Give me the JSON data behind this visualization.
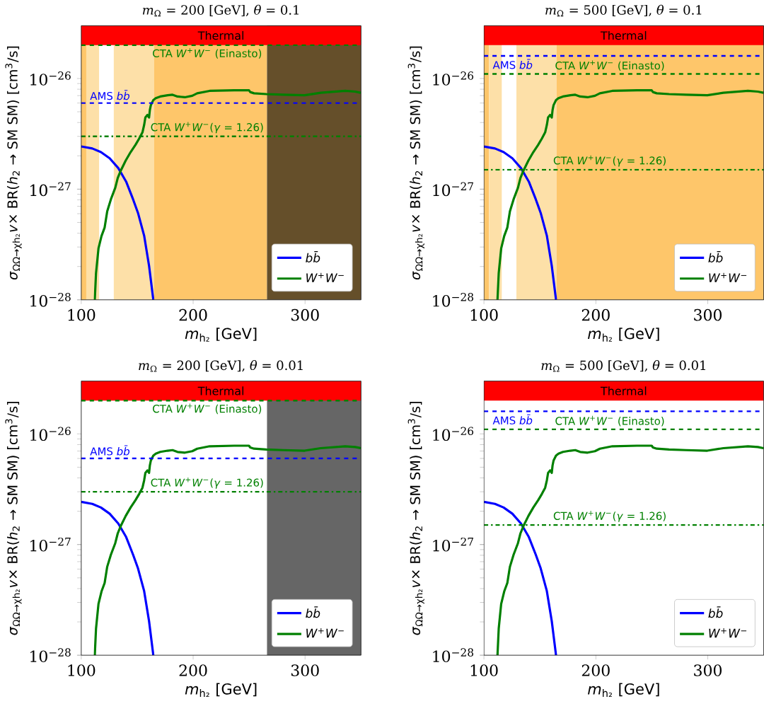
{
  "chart_data": [
    {
      "type": "line",
      "title": "*m*$_{Ω}$ = 200 [GeV], *θ* = 0.1",
      "xlabel": "*m*$_{h₂}$ [GeV]",
      "ylabel": "*σ*$_{ΩΩ→χh₂}$*v*× BR(*h*$_{2}$ → SM SM) [cm$^{3}$/s]",
      "series": [
        {
          "name": "*bb̄*",
          "color": "#0000ff",
          "x": [
            100,
            109.9,
            117.6,
            125.4,
            133.1,
            140.1,
            146.3,
            150.7,
            156.2,
            160.6,
            164.4
          ],
          "values": [
            2.43e-27,
            2.33e-27,
            2.16e-27,
            1.9e-27,
            1.55e-27,
            1.17e-27,
            8.1e-28,
            6.1e-28,
            3.8e-28,
            2.03e-28,
            1e-28
          ]
        },
        {
          "name": "*W*$^{+}$*W*$^{−}$",
          "color": "#008000",
          "x": [
            112.1,
            113.2,
            115.4,
            118.1,
            120.9,
            123.2,
            126.5,
            130.4,
            132.6,
            135.3,
            139.7,
            144.1,
            148.5,
            151.8,
            154.7,
            156.2,
            157.3,
            159.1,
            160.6,
            161.3,
            162.2,
            164.4,
            166.6,
            170.6,
            177.2,
            181.6,
            186.0,
            192.6,
            199.2,
            203.6,
            214.7,
            236.7,
            249.9,
            251.0,
            254.4,
            265.4,
            280.8,
            299.6,
            313.9,
            335.9,
            344.8,
            349.8
          ],
          "values": [
            1e-28,
            1.74e-28,
            2.91e-28,
            3.77e-28,
            4.5e-28,
            6.3e-28,
            8.1e-28,
            1.03e-27,
            1.26e-27,
            1.47e-27,
            1.81e-27,
            2.16e-27,
            2.52e-27,
            2.87e-27,
            3.26e-27,
            3.8e-27,
            4.44e-27,
            4.68e-27,
            4.44e-27,
            5.18e-27,
            5.74e-27,
            6.37e-27,
            6.63e-27,
            6.87e-27,
            7.05e-27,
            7.13e-27,
            6.87e-27,
            6.77e-27,
            6.98e-27,
            7.35e-27,
            7.73e-27,
            7.82e-27,
            7.82e-27,
            7.54e-27,
            7.35e-27,
            7.23e-27,
            7.13e-27,
            7.05e-27,
            7.43e-27,
            7.73e-27,
            7.61e-27,
            7.43e-27
          ]
        }
      ],
      "xlim": [
        100,
        350
      ],
      "ylim": [
        1e-28,
        3e-26
      ],
      "xticks": [
        100,
        200,
        300
      ],
      "yticks": [
        {
          "value": 1e-28,
          "label": "10$^{−28}$"
        },
        {
          "value": 1e-27,
          "label": "10$^{−27}$"
        },
        {
          "value": 1e-26,
          "label": "10$^{−26}$"
        }
      ],
      "log": "y",
      "legend": "bottom right",
      "bands": [
        {
          "axis": "x",
          "from": 100,
          "to": 104.5,
          "color": "#fec66a"
        },
        {
          "axis": "x",
          "from": 104.5,
          "to": 116,
          "color": "#fde0a8"
        },
        {
          "axis": "x",
          "from": 129,
          "to": 165,
          "color": "#fde0a8"
        },
        {
          "axis": "x",
          "from": 165,
          "to": 266,
          "color": "#fec66a"
        },
        {
          "axis": "x",
          "from": 266,
          "to": 350,
          "color": "#654f2a"
        },
        {
          "axis": "y",
          "from": 2e-26,
          "to": 3e-26,
          "label": "Thermal",
          "color": "#ff0000"
        }
      ],
      "ref_lines": [
        {
          "axis": "y",
          "value": 6e-27,
          "label": "AMS *bb̄*",
          "color": "#0000ff",
          "line_style": "dashed"
        },
        {
          "axis": "y",
          "value": 2e-26,
          "label": "CTA *W*$^{+}$*W*$^{−}$ (Einasto)",
          "color": "#008000",
          "line_style": "dashed"
        },
        {
          "axis": "y",
          "value": 3e-27,
          "color": "#008000",
          "line_style": "dashdot"
        }
      ],
      "annotations": [
        "CTA *W*$^{+}$*W*$^{−}$(*γ* = 1.26)"
      ]
    },
    {
      "type": "line",
      "title": "*m*$_{Ω}$ = 500 [GeV], *θ* = 0.1",
      "xlabel": "*m*$_{h₂}$ [GeV]",
      "ylabel": "*σ*$_{ΩΩ→χh₂}$*v*× BR(*h*$_{2}$ → SM SM) [cm$^{3}$/s]",
      "series": [
        {
          "name": "*bb̄*",
          "color": "#0000ff",
          "x": [
            100,
            109.9,
            117.6,
            125.4,
            133.1,
            140.1,
            146.3,
            150.7,
            156.2,
            160.6,
            164.4
          ],
          "values": [
            2.43e-27,
            2.33e-27,
            2.16e-27,
            1.9e-27,
            1.55e-27,
            1.17e-27,
            8.1e-28,
            6.1e-28,
            3.8e-28,
            2.03e-28,
            1e-28
          ]
        },
        {
          "name": "*W*$^{+}$*W*$^{−}$",
          "color": "#008000",
          "x": [
            112.1,
            113.2,
            115.4,
            118.1,
            120.9,
            123.2,
            126.5,
            130.4,
            132.6,
            135.3,
            139.7,
            144.1,
            148.5,
            151.8,
            154.7,
            156.2,
            157.3,
            159.1,
            160.6,
            161.3,
            162.2,
            164.4,
            166.6,
            170.6,
            177.2,
            181.6,
            186.0,
            192.6,
            199.2,
            203.6,
            214.7,
            236.7,
            249.9,
            251.0,
            254.4,
            265.4,
            280.8,
            299.6,
            313.9,
            335.9,
            344.8,
            349.8
          ],
          "values": [
            1e-28,
            1.74e-28,
            2.91e-28,
            3.77e-28,
            4.5e-28,
            6.3e-28,
            8.1e-28,
            1.03e-27,
            1.26e-27,
            1.47e-27,
            1.81e-27,
            2.16e-27,
            2.52e-27,
            2.87e-27,
            3.26e-27,
            3.8e-27,
            4.44e-27,
            4.68e-27,
            4.44e-27,
            5.18e-27,
            5.74e-27,
            6.37e-27,
            6.63e-27,
            6.87e-27,
            7.05e-27,
            7.13e-27,
            6.87e-27,
            6.77e-27,
            6.98e-27,
            7.35e-27,
            7.73e-27,
            7.82e-27,
            7.82e-27,
            7.54e-27,
            7.35e-27,
            7.23e-27,
            7.13e-27,
            7.05e-27,
            7.43e-27,
            7.73e-27,
            7.61e-27,
            7.43e-27
          ]
        }
      ],
      "xlim": [
        100,
        350
      ],
      "ylim": [
        1e-28,
        3e-26
      ],
      "xticks": [
        100,
        200,
        300
      ],
      "yticks": [
        {
          "value": 1e-28,
          "label": "10$^{−28}$"
        },
        {
          "value": 1e-27,
          "label": "10$^{−27}$"
        },
        {
          "value": 1e-26,
          "label": "10$^{−26}$"
        }
      ],
      "log": "y",
      "legend": "bottom right",
      "bands": [
        {
          "axis": "x",
          "from": 100,
          "to": 104.5,
          "color": "#fec66a"
        },
        {
          "axis": "x",
          "from": 104.5,
          "to": 116,
          "color": "#fde0a8"
        },
        {
          "axis": "x",
          "from": 129,
          "to": 165,
          "color": "#fde0a8"
        },
        {
          "axis": "x",
          "from": 165,
          "to": 350,
          "color": "#fec66a"
        },
        {
          "axis": "y",
          "from": 2e-26,
          "to": 3e-26,
          "label": "Thermal",
          "color": "#ff0000"
        }
      ],
      "ref_lines": [
        {
          "axis": "y",
          "value": 1.6e-26,
          "label": "AMS *bb̄*",
          "color": "#0000ff",
          "line_style": "dashed"
        },
        {
          "axis": "y",
          "value": 1.1e-26,
          "label": "CTA *W*$^{+}$*W*$^{−}$ (Einasto)",
          "color": "#008000",
          "line_style": "dashed"
        },
        {
          "axis": "y",
          "value": 1.5e-27,
          "color": "#008000",
          "line_style": "dashdot"
        }
      ],
      "annotations": [
        "CTA *W*$^{+}$*W*$^{−}$(*γ* = 1.26)"
      ]
    },
    {
      "type": "line",
      "title": "*m*$_{Ω}$ = 200 [GeV], *θ* = 0.01",
      "xlabel": "*m*$_{h₂}$ [GeV]",
      "ylabel": "*σ*$_{ΩΩ→χh₂}$*v*× BR(*h*$_{2}$ → SM SM) [cm$^{3}$/s]",
      "series": [
        {
          "name": "*bb̄*",
          "color": "#0000ff",
          "x": [
            100,
            109.9,
            117.6,
            125.4,
            133.1,
            140.1,
            146.3,
            150.7,
            156.2,
            160.6,
            164.4
          ],
          "values": [
            2.43e-27,
            2.33e-27,
            2.16e-27,
            1.9e-27,
            1.55e-27,
            1.17e-27,
            8.1e-28,
            6.1e-28,
            3.8e-28,
            2.03e-28,
            1e-28
          ]
        },
        {
          "name": "*W*$^{+}$*W*$^{−}$",
          "color": "#008000",
          "x": [
            112.1,
            113.2,
            115.4,
            118.1,
            120.9,
            123.2,
            126.5,
            130.4,
            132.6,
            135.3,
            139.7,
            144.1,
            148.5,
            151.8,
            154.7,
            156.2,
            157.3,
            159.1,
            160.6,
            161.3,
            162.2,
            164.4,
            166.6,
            170.6,
            177.2,
            181.6,
            186.0,
            192.6,
            199.2,
            203.6,
            214.7,
            236.7,
            249.9,
            251.0,
            254.4,
            265.4,
            280.8,
            299.6,
            313.9,
            335.9,
            344.8,
            349.8
          ],
          "values": [
            1e-28,
            1.74e-28,
            2.91e-28,
            3.77e-28,
            4.5e-28,
            6.3e-28,
            8.1e-28,
            1.03e-27,
            1.26e-27,
            1.47e-27,
            1.81e-27,
            2.16e-27,
            2.52e-27,
            2.87e-27,
            3.26e-27,
            3.8e-27,
            4.44e-27,
            4.68e-27,
            4.44e-27,
            5.18e-27,
            5.74e-27,
            6.37e-27,
            6.63e-27,
            6.87e-27,
            7.05e-27,
            7.13e-27,
            6.87e-27,
            6.77e-27,
            6.98e-27,
            7.35e-27,
            7.73e-27,
            7.82e-27,
            7.82e-27,
            7.54e-27,
            7.35e-27,
            7.23e-27,
            7.13e-27,
            7.05e-27,
            7.43e-27,
            7.73e-27,
            7.61e-27,
            7.43e-27
          ]
        }
      ],
      "xlim": [
        100,
        350
      ],
      "ylim": [
        1e-28,
        3e-26
      ],
      "xticks": [
        100,
        200,
        300
      ],
      "yticks": [
        {
          "value": 1e-28,
          "label": "10$^{−28}$"
        },
        {
          "value": 1e-27,
          "label": "10$^{−27}$"
        },
        {
          "value": 1e-26,
          "label": "10$^{−26}$"
        }
      ],
      "log": "y",
      "legend": "bottom right",
      "bands": [
        {
          "axis": "x",
          "from": 266,
          "to": 350,
          "color": "#666666"
        },
        {
          "axis": "y",
          "from": 2e-26,
          "to": 3e-26,
          "label": "Thermal",
          "color": "#ff0000"
        }
      ],
      "ref_lines": [
        {
          "axis": "y",
          "value": 6e-27,
          "label": "AMS *bb̄*",
          "color": "#0000ff",
          "line_style": "dashed"
        },
        {
          "axis": "y",
          "value": 2e-26,
          "label": "CTA *W*$^{+}$*W*$^{−}$ (Einasto)",
          "color": "#008000",
          "line_style": "dashed"
        },
        {
          "axis": "y",
          "value": 3e-27,
          "color": "#008000",
          "line_style": "dashdot"
        }
      ],
      "annotations": [
        "CTA *W*$^{+}$*W*$^{−}$(*γ* = 1.26)"
      ]
    },
    {
      "type": "line",
      "title": "*m*$_{Ω}$ = 500 [GeV], *θ* = 0.01",
      "xlabel": "*m*$_{h₂}$ [GeV]",
      "ylabel": "*σ*$_{ΩΩ→χh₂}$*v*× BR(*h*$_{2}$ → SM SM) [cm$^{3}$/s]",
      "series": [
        {
          "name": "*bb̄*",
          "color": "#0000ff",
          "x": [
            100,
            109.9,
            117.6,
            125.4,
            133.1,
            140.1,
            146.3,
            150.7,
            156.2,
            160.6,
            164.4
          ],
          "values": [
            2.43e-27,
            2.33e-27,
            2.16e-27,
            1.9e-27,
            1.55e-27,
            1.17e-27,
            8.1e-28,
            6.1e-28,
            3.8e-28,
            2.03e-28,
            1e-28
          ]
        },
        {
          "name": "*W*$^{+}$*W*$^{−}$",
          "color": "#008000",
          "x": [
            112.1,
            113.2,
            115.4,
            118.1,
            120.9,
            123.2,
            126.5,
            130.4,
            132.6,
            135.3,
            139.7,
            144.1,
            148.5,
            151.8,
            154.7,
            156.2,
            157.3,
            159.1,
            160.6,
            161.3,
            162.2,
            164.4,
            166.6,
            170.6,
            177.2,
            181.6,
            186.0,
            192.6,
            199.2,
            203.6,
            214.7,
            236.7,
            249.9,
            251.0,
            254.4,
            265.4,
            280.8,
            299.6,
            313.9,
            335.9,
            344.8,
            349.8
          ],
          "values": [
            1e-28,
            1.74e-28,
            2.91e-28,
            3.77e-28,
            4.5e-28,
            6.3e-28,
            8.1e-28,
            1.03e-27,
            1.26e-27,
            1.47e-27,
            1.81e-27,
            2.16e-27,
            2.52e-27,
            2.87e-27,
            3.26e-27,
            3.8e-27,
            4.44e-27,
            4.68e-27,
            4.44e-27,
            5.18e-27,
            5.74e-27,
            6.37e-27,
            6.63e-27,
            6.87e-27,
            7.05e-27,
            7.13e-27,
            6.87e-27,
            6.77e-27,
            6.98e-27,
            7.35e-27,
            7.73e-27,
            7.82e-27,
            7.82e-27,
            7.54e-27,
            7.35e-27,
            7.23e-27,
            7.13e-27,
            7.05e-27,
            7.43e-27,
            7.73e-27,
            7.61e-27,
            7.43e-27
          ]
        }
      ],
      "xlim": [
        100,
        350
      ],
      "ylim": [
        1e-28,
        3e-26
      ],
      "xticks": [
        100,
        200,
        300
      ],
      "yticks": [
        {
          "value": 1e-28,
          "label": "10$^{−28}$"
        },
        {
          "value": 1e-27,
          "label": "10$^{−27}$"
        },
        {
          "value": 1e-26,
          "label": "10$^{−26}$"
        }
      ],
      "log": "y",
      "legend": "bottom right",
      "bands": [
        {
          "axis": "y",
          "from": 2e-26,
          "to": 3e-26,
          "label": "Thermal",
          "color": "#ff0000"
        }
      ],
      "ref_lines": [
        {
          "axis": "y",
          "value": 1.6e-26,
          "label": "AMS *bb̄*",
          "color": "#0000ff",
          "line_style": "dashed"
        },
        {
          "axis": "y",
          "value": 1.1e-26,
          "label": "CTA *W*$^{+}$*W*$^{−}$ (Einasto)",
          "color": "#008000",
          "line_style": "dashed"
        },
        {
          "axis": "y",
          "value": 1.5e-27,
          "color": "#008000",
          "line_style": "dashdot"
        }
      ],
      "annotations": [
        "CTA *W*$^{+}$*W*$^{−}$(*γ* = 1.26)"
      ]
    }
  ]
}
